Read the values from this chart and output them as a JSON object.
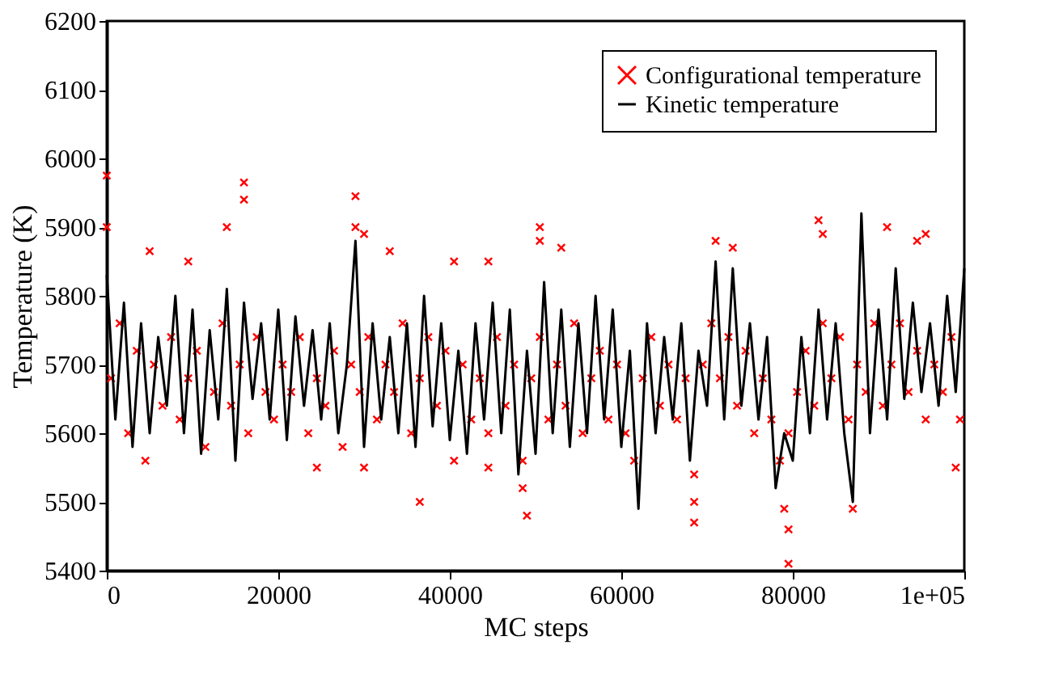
{
  "chart_data": {
    "type": "scatter",
    "xlabel": "MC steps",
    "ylabel": "Temperature (K)",
    "xlim": [
      0,
      100000
    ],
    "ylim": [
      5400,
      6200
    ],
    "xticks": [
      0,
      20000,
      40000,
      60000,
      80000,
      {
        "value": 100000,
        "label": "1e+05"
      }
    ],
    "yticks": [
      5400,
      5500,
      5600,
      5700,
      5800,
      5900,
      6000,
      6100,
      6200
    ],
    "grid": false,
    "legend": "top right",
    "series": [
      {
        "name": "Configurational temperature",
        "marker": "cross",
        "color": "#ff0000",
        "x": [
          500,
          1500,
          2500,
          3500,
          4500,
          5500,
          6500,
          7500,
          8500,
          9500,
          10500,
          11500,
          12500,
          13500,
          14500,
          15500,
          16500,
          17500,
          18500,
          19500,
          20500,
          21500,
          22500,
          23500,
          24500,
          25500,
          26500,
          27500,
          28500,
          29500,
          30500,
          31500,
          32500,
          33500,
          34500,
          35500,
          36500,
          37500,
          38500,
          39500,
          40500,
          41500,
          42500,
          43500,
          44500,
          45500,
          46500,
          47500,
          48500,
          49500,
          50500,
          51500,
          52500,
          53500,
          54500,
          55500,
          56500,
          57500,
          58500,
          59500,
          60500,
          61500,
          62500,
          63500,
          64500,
          65500,
          66500,
          67500,
          68500,
          69500,
          70500,
          71500,
          72500,
          73500,
          74500,
          75500,
          76500,
          77500,
          78500,
          79500,
          80500,
          81500,
          82500,
          83500,
          84500,
          85500,
          86500,
          87500,
          88500,
          89500,
          90500,
          91500,
          92500,
          93500,
          94500,
          95500,
          96500,
          97500,
          98500,
          99500,
          0,
          0,
          5000,
          16000,
          16000,
          14000,
          9500,
          29000,
          29000,
          30000,
          33000,
          24500,
          30000,
          36500,
          40500,
          44500,
          44500,
          49000,
          50500,
          50500,
          53000,
          48500,
          68500,
          68500,
          71000,
          73000,
          79500,
          79500,
          79000,
          83000,
          83500,
          91000,
          94500,
          95500,
          87000,
          99000
        ],
        "values": [
          5680,
          5760,
          5600,
          5720,
          5560,
          5700,
          5640,
          5740,
          5620,
          5680,
          5720,
          5580,
          5660,
          5760,
          5640,
          5700,
          5600,
          5740,
          5660,
          5620,
          5700,
          5660,
          5740,
          5600,
          5680,
          5640,
          5720,
          5580,
          5700,
          5660,
          5740,
          5620,
          5700,
          5660,
          5760,
          5600,
          5680,
          5740,
          5640,
          5720,
          5560,
          5700,
          5620,
          5680,
          5600,
          5740,
          5640,
          5700,
          5560,
          5680,
          5740,
          5620,
          5700,
          5640,
          5760,
          5600,
          5680,
          5720,
          5620,
          5700,
          5600,
          5560,
          5680,
          5740,
          5640,
          5700,
          5620,
          5680,
          5540,
          5700,
          5760,
          5680,
          5740,
          5640,
          5720,
          5600,
          5680,
          5620,
          5560,
          5600,
          5660,
          5720,
          5640,
          5760,
          5680,
          5740,
          5620,
          5700,
          5660,
          5760,
          5640,
          5700,
          5760,
          5660,
          5720,
          5620,
          5700,
          5660,
          5740,
          5620,
          5975,
          5900,
          5865,
          5965,
          5940,
          5900,
          5850,
          5945,
          5900,
          5890,
          5865,
          5550,
          5550,
          5500,
          5850,
          5850,
          5550,
          5480,
          5900,
          5880,
          5870,
          5520,
          5470,
          5500,
          5880,
          5870,
          5410,
          5460,
          5490,
          5910,
          5890,
          5900,
          5880,
          5890,
          5490,
          5550
        ]
      },
      {
        "name": "Kinetic temperature",
        "type": "line",
        "color": "#000000",
        "line_style": "solid",
        "x": [
          0,
          1000,
          2000,
          3000,
          4000,
          5000,
          6000,
          7000,
          8000,
          9000,
          10000,
          11000,
          12000,
          13000,
          14000,
          15000,
          16000,
          17000,
          18000,
          19000,
          20000,
          21000,
          22000,
          23000,
          24000,
          25000,
          26000,
          27000,
          28000,
          29000,
          30000,
          31000,
          32000,
          33000,
          34000,
          35000,
          36000,
          37000,
          38000,
          39000,
          40000,
          41000,
          42000,
          43000,
          44000,
          45000,
          46000,
          47000,
          48000,
          49000,
          50000,
          51000,
          52000,
          53000,
          54000,
          55000,
          56000,
          57000,
          58000,
          59000,
          60000,
          61000,
          62000,
          63000,
          64000,
          65000,
          66000,
          67000,
          68000,
          69000,
          70000,
          71000,
          72000,
          73000,
          74000,
          75000,
          76000,
          77000,
          78000,
          79000,
          80000,
          81000,
          82000,
          83000,
          84000,
          85000,
          86000,
          87000,
          88000,
          89000,
          90000,
          91000,
          92000,
          93000,
          94000,
          95000,
          96000,
          97000,
          98000,
          99000,
          100000
        ],
        "values": [
          5830,
          5620,
          5790,
          5580,
          5760,
          5600,
          5740,
          5640,
          5800,
          5600,
          5780,
          5570,
          5750,
          5620,
          5810,
          5560,
          5790,
          5650,
          5760,
          5620,
          5780,
          5590,
          5770,
          5640,
          5750,
          5620,
          5760,
          5600,
          5700,
          5880,
          5580,
          5760,
          5620,
          5740,
          5600,
          5760,
          5580,
          5800,
          5610,
          5760,
          5590,
          5720,
          5570,
          5760,
          5620,
          5790,
          5600,
          5780,
          5540,
          5720,
          5570,
          5820,
          5600,
          5780,
          5580,
          5760,
          5600,
          5800,
          5620,
          5780,
          5580,
          5720,
          5490,
          5760,
          5600,
          5740,
          5620,
          5760,
          5560,
          5720,
          5640,
          5850,
          5620,
          5840,
          5640,
          5760,
          5620,
          5740,
          5520,
          5600,
          5560,
          5740,
          5600,
          5780,
          5620,
          5760,
          5600,
          5500,
          5920,
          5600,
          5780,
          5620,
          5840,
          5650,
          5790,
          5660,
          5760,
          5640,
          5800,
          5660,
          5840
        ]
      }
    ]
  }
}
